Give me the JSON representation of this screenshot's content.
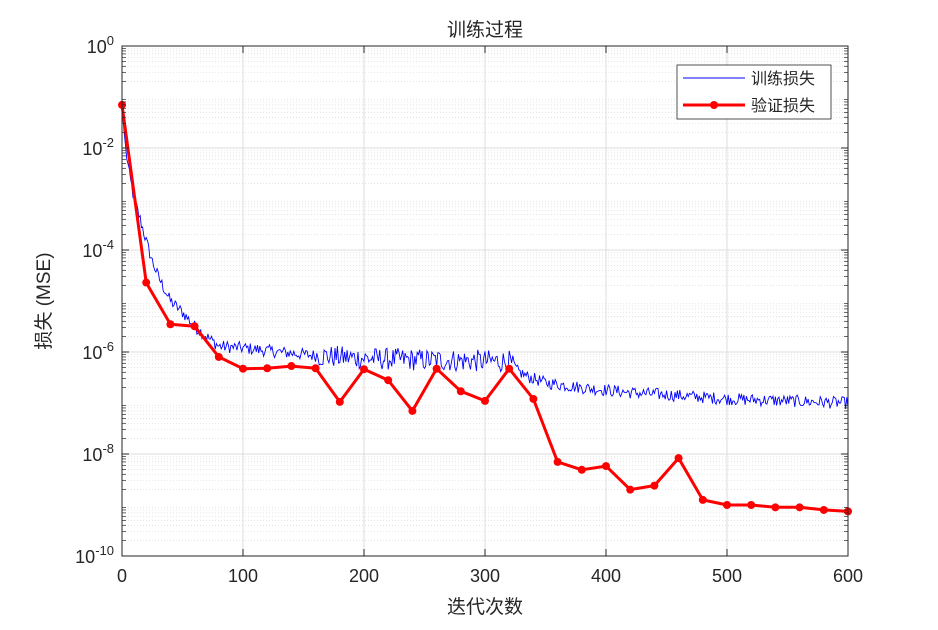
{
  "chart_data": {
    "type": "line",
    "title": "训练过程",
    "xlabel": "迭代次数",
    "ylabel": "损失 (MSE)",
    "xlim": [
      0,
      600
    ],
    "ylim": [
      1e-10,
      1
    ],
    "yscale": "log",
    "grid": true,
    "legend_position": "top-right",
    "x_ticks": [
      "0",
      "100",
      "200",
      "300",
      "400",
      "500",
      "600"
    ],
    "x_tick_values": [
      0,
      100,
      200,
      300,
      400,
      500,
      600
    ],
    "y_tick_exponents": [
      "0",
      "-2",
      "-4",
      "-6",
      "-8",
      "-10"
    ],
    "y_tick_base": "10",
    "series": [
      {
        "name": "训练损失",
        "color": "#0000ff",
        "x": [
          0,
          3,
          6,
          10,
          15,
          20,
          25,
          30,
          40,
          50,
          60,
          70,
          80,
          100,
          130,
          160,
          200,
          250,
          320,
          325,
          335,
          350,
          380,
          420,
          460,
          500,
          550,
          600
        ],
        "y": [
          0.06,
          0.01,
          0.003,
          0.001,
          0.0004,
          0.00015,
          6e-05,
          3e-05,
          1e-05,
          6e-06,
          3.2e-06,
          2e-06,
          1.3e-06,
          1.2e-06,
          1e-06,
          8.5e-07,
          7.5e-07,
          7e-07,
          6.5e-07,
          4.5e-07,
          3.3e-07,
          2.5e-07,
          2e-07,
          1.6e-07,
          1.4e-07,
          1.2e-07,
          1.1e-07,
          1e-07
        ],
        "noise_log10_amplitude": [
          [
            0,
            160,
            0.12
          ],
          [
            160,
            325,
            0.22
          ],
          [
            325,
            600,
            0.12
          ]
        ]
      },
      {
        "name": "验证损失",
        "color": "#ff0000",
        "marker": "circle",
        "x": [
          0,
          20,
          40,
          60,
          80,
          100,
          120,
          140,
          160,
          180,
          200,
          220,
          240,
          260,
          280,
          300,
          320,
          340,
          360,
          380,
          400,
          420,
          440,
          460,
          480,
          500,
          520,
          540,
          560,
          580,
          600
        ],
        "y": [
          0.07,
          2.3e-05,
          3.5e-06,
          3.2e-06,
          8e-07,
          4.7e-07,
          4.8e-07,
          5.3e-07,
          4.8e-07,
          1.05e-07,
          4.6e-07,
          2.8e-07,
          7e-08,
          4.7e-07,
          1.7e-07,
          1.1e-07,
          4.7e-07,
          1.2e-07,
          7e-09,
          4.9e-09,
          5.8e-09,
          2e-09,
          2.4e-09,
          8.3e-09,
          1.26e-09,
          1e-09,
          1e-09,
          9e-10,
          9e-10,
          8e-10,
          7.5e-10
        ]
      }
    ]
  }
}
